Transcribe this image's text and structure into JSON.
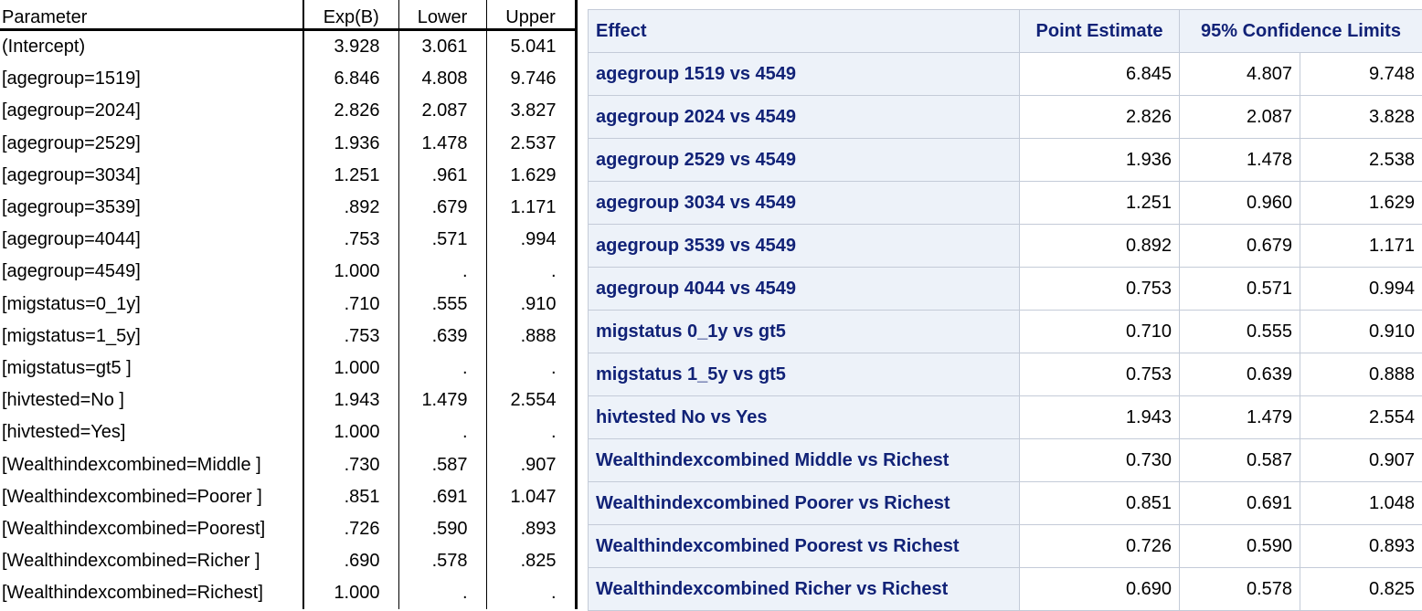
{
  "left_table": {
    "header": [
      "Parameter",
      "Exp(B)",
      "Lower",
      "Upper"
    ],
    "rows": [
      [
        "(Intercept)",
        "3.928",
        "3.061",
        "5.041"
      ],
      [
        "[agegroup=1519]",
        "6.846",
        "4.808",
        "9.746"
      ],
      [
        "[agegroup=2024]",
        "2.826",
        "2.087",
        "3.827"
      ],
      [
        "[agegroup=2529]",
        "1.936",
        "1.478",
        "2.537"
      ],
      [
        "[agegroup=3034]",
        "1.251",
        ".961",
        "1.629"
      ],
      [
        "[agegroup=3539]",
        ".892",
        ".679",
        "1.171"
      ],
      [
        "[agegroup=4044]",
        ".753",
        ".571",
        ".994"
      ],
      [
        "[agegroup=4549]",
        "1.000",
        ".",
        "."
      ],
      [
        "[migstatus=0_1y]",
        ".710",
        ".555",
        ".910"
      ],
      [
        "[migstatus=1_5y]",
        ".753",
        ".639",
        ".888"
      ],
      [
        "[migstatus=gt5 ]",
        "1.000",
        ".",
        "."
      ],
      [
        "[hivtested=No ]",
        "1.943",
        "1.479",
        "2.554"
      ],
      [
        "[hivtested=Yes]",
        "1.000",
        ".",
        "."
      ],
      [
        "[Wealthindexcombined=Middle ]",
        ".730",
        ".587",
        ".907"
      ],
      [
        "[Wealthindexcombined=Poorer ]",
        ".851",
        ".691",
        "1.047"
      ],
      [
        "[Wealthindexcombined=Poorest]",
        ".726",
        ".590",
        ".893"
      ],
      [
        "[Wealthindexcombined=Richer ]",
        ".690",
        ".578",
        ".825"
      ],
      [
        "[Wealthindexcombined=Richest]",
        "1.000",
        ".",
        "."
      ]
    ]
  },
  "right_table": {
    "header": [
      "Effect",
      "Point Estimate",
      "95% Confidence Limits"
    ],
    "rows": [
      [
        "agegroup 1519 vs 4549",
        "6.845",
        "4.807",
        "9.748"
      ],
      [
        "agegroup 2024 vs 4549",
        "2.826",
        "2.087",
        "3.828"
      ],
      [
        "agegroup 2529 vs 4549",
        "1.936",
        "1.478",
        "2.538"
      ],
      [
        "agegroup 3034 vs 4549",
        "1.251",
        "0.960",
        "1.629"
      ],
      [
        "agegroup 3539 vs 4549",
        "0.892",
        "0.679",
        "1.171"
      ],
      [
        "agegroup 4044 vs 4549",
        "0.753",
        "0.571",
        "0.994"
      ],
      [
        "migstatus 0_1y vs gt5",
        "0.710",
        "0.555",
        "0.910"
      ],
      [
        "migstatus 1_5y vs gt5",
        "0.753",
        "0.639",
        "0.888"
      ],
      [
        "hivtested No vs Yes",
        "1.943",
        "1.479",
        "2.554"
      ],
      [
        "Wealthindexcombined Middle vs Richest",
        "0.730",
        "0.587",
        "0.907"
      ],
      [
        "Wealthindexcombined Poorer vs Richest",
        "0.851",
        "0.691",
        "1.048"
      ],
      [
        "Wealthindexcombined Poorest vs Richest",
        "0.726",
        "0.590",
        "0.893"
      ],
      [
        "Wealthindexcombined Richer vs Richest",
        "0.690",
        "0.578",
        "0.825"
      ]
    ]
  }
}
